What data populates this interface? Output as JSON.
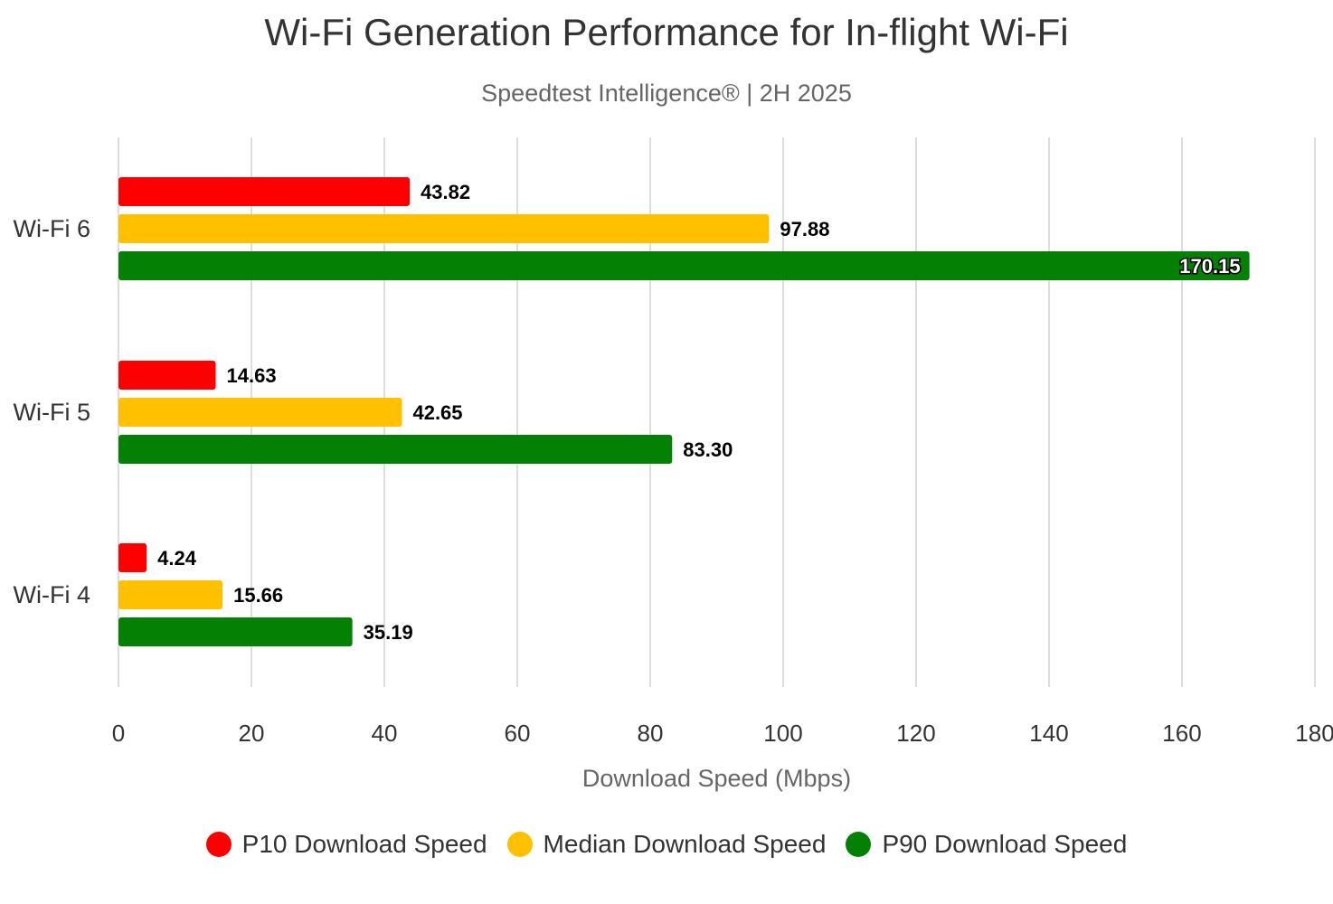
{
  "chart_data": {
    "type": "bar",
    "orientation": "horizontal",
    "title": "Wi-Fi Generation Performance for In-flight Wi-Fi",
    "subtitle": "Speedtest Intelligence® | 2H 2025",
    "categories": [
      "Wi-Fi 6",
      "Wi-Fi 5",
      "Wi-Fi 4"
    ],
    "series": [
      {
        "name": "P10 Download Speed",
        "color": "#ff0000",
        "values": [
          43.82,
          14.63,
          4.24
        ],
        "labels": [
          "43.82",
          "14.63",
          "4.24"
        ]
      },
      {
        "name": "Median Download Speed",
        "color": "#ffc000",
        "values": [
          97.88,
          42.65,
          15.66
        ],
        "labels": [
          "97.88",
          "42.65",
          "15.66"
        ]
      },
      {
        "name": "P90 Download Speed",
        "color": "#048004",
        "values": [
          170.15,
          83.3,
          35.19
        ],
        "labels": [
          "170.15",
          "83.30",
          "35.19"
        ]
      }
    ],
    "xlabel": "Download Speed (Mbps)",
    "ylabel": "",
    "xlim": [
      0,
      180
    ],
    "xticks": [
      0,
      20,
      40,
      60,
      80,
      100,
      120,
      140,
      160,
      180
    ],
    "grid": "vertical",
    "legend": "bottom-center"
  }
}
